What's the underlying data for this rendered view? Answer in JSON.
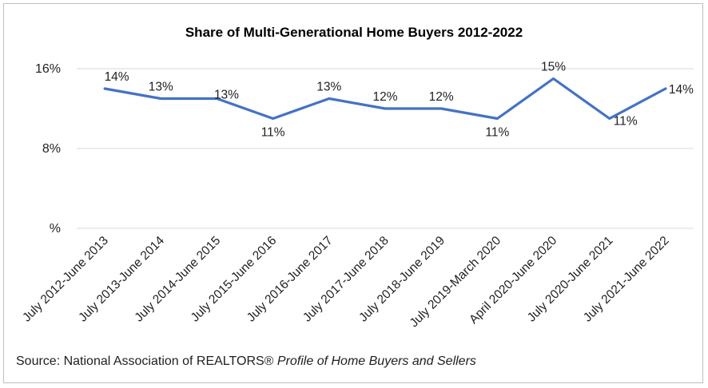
{
  "chart_data": {
    "type": "line",
    "title": "Share of Multi-Generational Home Buyers 2012-2022",
    "xlabel": "",
    "ylabel": "",
    "categories": [
      "July 2012-June 2013",
      "July 2013-June 2014",
      "July 2014-June 2015",
      "July 2015-June 2016",
      "July 2016-June 2017",
      "July 2017-June 2018",
      "July 2018-June 2019",
      "July 2019-March 2020",
      "April 2020-June 2020",
      "July 2020-June 2021",
      "July 2021-June 2022"
    ],
    "series": [
      {
        "values": [
          14,
          13,
          13,
          11,
          13,
          12,
          12,
          11,
          15,
          11,
          14
        ],
        "data_labels": [
          "14%",
          "13%",
          "13%",
          "11%",
          "13%",
          "12%",
          "12%",
          "11%",
          "15%",
          "11%",
          "14%"
        ],
        "color": "#4472c4"
      }
    ],
    "ylim": [
      0,
      16
    ],
    "yticks": [
      0,
      8,
      16
    ],
    "ytick_labels": [
      "%",
      "8%",
      "16%"
    ],
    "grid": true,
    "gridline_color": "#d9d9d9"
  },
  "footer": {
    "source_prefix": "Source: National Association of REALTORS® ",
    "source_title": "Profile of Home Buyers and Sellers"
  }
}
